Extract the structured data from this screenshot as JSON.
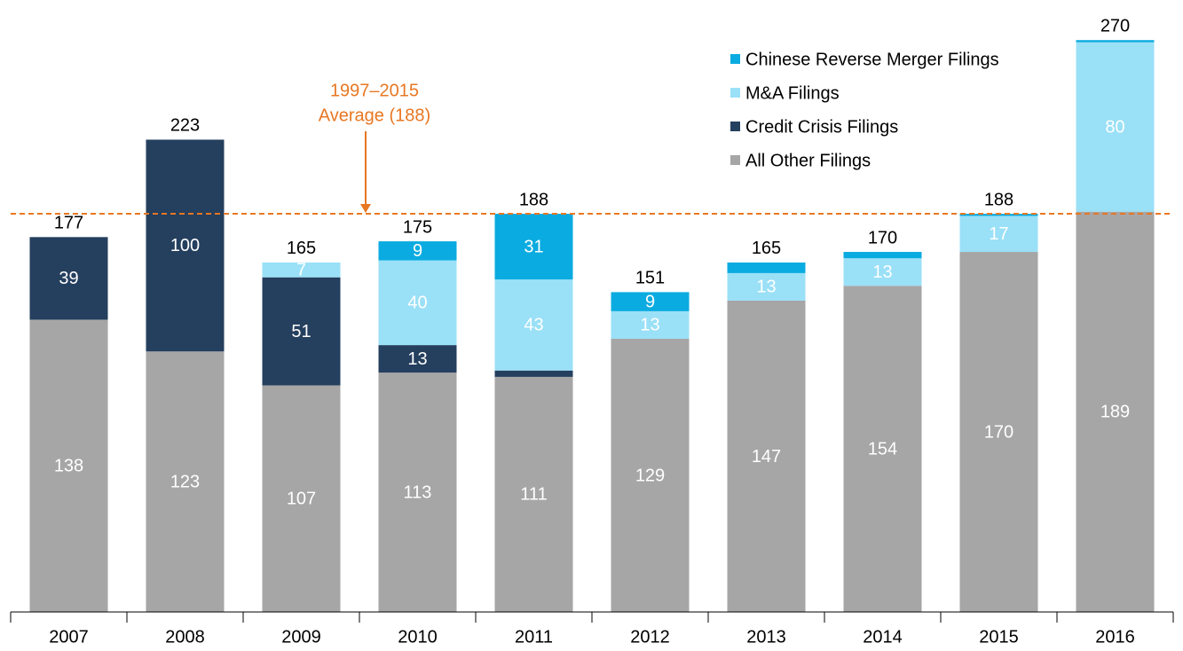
{
  "chart_data": {
    "type": "stacked_bar",
    "categories": [
      "2007",
      "2008",
      "2009",
      "2010",
      "2011",
      "2012",
      "2013",
      "2014",
      "2015",
      "2016"
    ],
    "series": [
      {
        "name": "All Other Filings",
        "color": "#a6a6a6",
        "values": [
          138,
          123,
          107,
          113,
          111,
          129,
          147,
          154,
          170,
          189
        ],
        "value_labels": [
          "138",
          "123",
          "107",
          "113",
          "111",
          "129",
          "147",
          "154",
          "170",
          "189"
        ]
      },
      {
        "name": "Credit Crisis Filings",
        "color": "#253f5e",
        "values": [
          39,
          100,
          51,
          13,
          3,
          0,
          0,
          0,
          0,
          0
        ],
        "value_labels": [
          "39",
          "100",
          "51",
          "13",
          null,
          null,
          null,
          null,
          null,
          null
        ]
      },
      {
        "name": "M&A Filings",
        "color": "#9ae0f7",
        "values": [
          0,
          0,
          7,
          40,
          43,
          13,
          13,
          13,
          17,
          80
        ],
        "value_labels": [
          null,
          null,
          "7",
          "40",
          "43",
          "13",
          "13",
          "13",
          "17",
          "80"
        ]
      },
      {
        "name": "Chinese Reverse Merger Filings",
        "color": "#0aabe0",
        "values": [
          0,
          0,
          0,
          9,
          31,
          9,
          5,
          3,
          1,
          1
        ],
        "value_labels": [
          null,
          null,
          null,
          "9",
          "31",
          "9",
          null,
          null,
          null,
          null
        ]
      }
    ],
    "totals": [
      177,
      223,
      165,
      175,
      188,
      151,
      165,
      170,
      188,
      270
    ],
    "average_line": {
      "value": 188,
      "label": [
        "1997–2015",
        "Average (188)"
      ],
      "color": "#e87722"
    },
    "ylim": [
      0,
      285
    ],
    "legend": "top-right"
  }
}
